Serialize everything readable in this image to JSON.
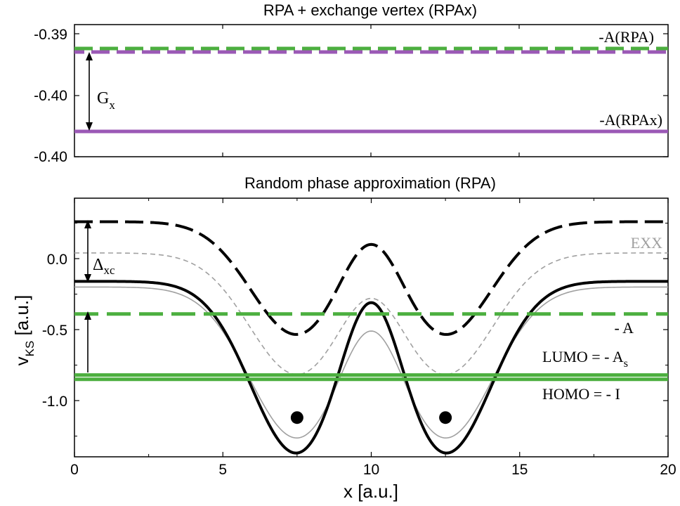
{
  "colors": {
    "green": "#4caf3f",
    "purple": "#9b59b6",
    "black": "#000000",
    "gray": "#a0a0a0"
  },
  "chart_data": [
    {
      "type": "line",
      "title": "RPA + exchange vertex (RPAx)",
      "xlim": [
        0,
        20
      ],
      "yticks": [
        "-0.39",
        "-0.40",
        "-0.40"
      ],
      "series": [
        {
          "name": "-A(RPA)",
          "style": "dashed",
          "color": "green",
          "y_level": "top"
        },
        {
          "name": "",
          "style": "dashed",
          "color": "purple",
          "y_level": "top"
        },
        {
          "name": "-A(RPAx)",
          "style": "solid",
          "color": "purple",
          "y_level": "lower"
        }
      ],
      "annotations": {
        "gap_label_main": "G",
        "gap_label_sub": "x"
      }
    },
    {
      "type": "line",
      "title": "Random phase approximation (RPA)",
      "xlabel": "x [a.u.]",
      "ylabel_main": "v",
      "ylabel_sub": "KS",
      "ylabel_tail": " [a.u.]",
      "xlim": [
        0,
        20
      ],
      "ylim": [
        -1.3,
        0.3
      ],
      "xticks": [
        0,
        5,
        10,
        15,
        20
      ],
      "yticks": [
        0.0,
        -0.5,
        -1.0
      ],
      "ytick_labels": [
        "0.0",
        "-0.5",
        "-1.0"
      ],
      "atom_positions": [
        7.5,
        12.5
      ],
      "atom_y": -1.12,
      "levels": {
        "minus_A": -0.39,
        "lumo": -0.82,
        "homo": -0.85
      },
      "series": [
        {
          "name": "",
          "style": "solid",
          "color": "black",
          "baseline": -0.16,
          "well_depth": 1.22,
          "well_sigma": 1.55,
          "midgap_level": -0.31
        },
        {
          "name": "",
          "style": "dashed",
          "color": "black",
          "baseline": 0.26,
          "well_depth": 0.8,
          "well_sigma": 1.55,
          "midgap_level": 0.1
        },
        {
          "name": "",
          "style": "solid",
          "color": "gray",
          "baseline": -0.2,
          "well_depth": 1.07,
          "well_sigma": 1.6,
          "midgap_level": -0.51
        },
        {
          "name": "EXX",
          "style": "dashed",
          "color": "gray",
          "baseline": 0.04,
          "well_depth": 0.86,
          "well_sigma": 1.6,
          "midgap_level": -0.28
        }
      ],
      "labels": {
        "exx": "EXX",
        "minus_a": "- A",
        "lumo_main": "LUMO =  - A",
        "lumo_sub": "s",
        "homo": "HOMO =  - I",
        "delta_main": "Δ",
        "delta_sub": "xc"
      }
    }
  ]
}
